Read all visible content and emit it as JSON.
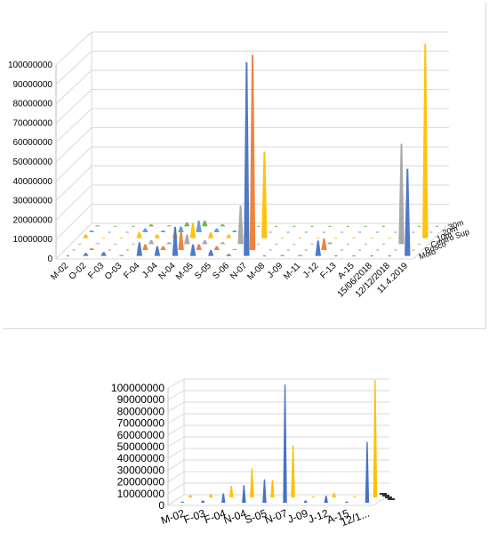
{
  "colors": {
    "Molo": "#4472c4",
    "Bosco": "#ed7d31",
    "Centro Sup": "#a5a5a5",
    "10m": "#ffc000",
    "20m": "#5b9bd5",
    "30m": "#70ad47"
  },
  "chart_data": [
    {
      "type": "bar",
      "subtype": "3d-column",
      "title": "",
      "ylim": [
        0,
        100000000
      ],
      "y_ticks": [
        "0",
        "10000000",
        "20000000",
        "30000000",
        "40000000",
        "50000000",
        "60000000",
        "70000000",
        "80000000",
        "90000000",
        "100000000"
      ],
      "categories": [
        "M-02",
        "O-02",
        "F-03",
        "O-03",
        "F-04",
        "J-04",
        "N-04",
        "M-05",
        "S-05",
        "S-06",
        "N-07",
        "M-08",
        "J-09",
        "M-11",
        "J-12",
        "F-13",
        "A-15",
        "15/06/2018",
        "12/12/2018",
        "11.4.2019"
      ],
      "series_labels": [
        "Molo",
        "Bosco",
        "Centro Sup",
        "10m",
        "20m",
        "30m"
      ],
      "series": [
        {
          "name": "Molo",
          "values": [
            0,
            1500000,
            2000000,
            500000,
            7000000,
            5000000,
            15000000,
            6000000,
            3000000,
            1000000,
            100000000,
            0,
            500000,
            500000,
            8000000,
            0,
            0,
            0,
            0,
            45000000
          ]
        },
        {
          "name": "Bosco",
          "values": [
            0,
            1000000,
            0,
            0,
            3000000,
            2000000,
            10000000,
            3000000,
            2000000,
            500000,
            101000000,
            0,
            0,
            0,
            6000000,
            0,
            0,
            0,
            0,
            0
          ]
        },
        {
          "name": "Centro Sup",
          "values": [
            0,
            500000,
            0,
            0,
            2000000,
            1000000,
            5000000,
            2000000,
            1000000,
            20000000,
            0,
            0,
            0,
            0,
            1000000,
            0,
            0,
            0,
            52000000,
            0
          ]
        },
        {
          "name": "10m",
          "values": [
            2000000,
            0,
            0,
            3000000,
            2000000,
            4000000,
            8000000,
            3000000,
            2000000,
            10000000,
            45000000,
            0,
            0,
            0,
            0,
            500000,
            0,
            0,
            0,
            101000000
          ]
        },
        {
          "name": "20m",
          "values": [
            1000000,
            0,
            0,
            2000000,
            1000000,
            3000000,
            6000000,
            2000000,
            1000000,
            0,
            0,
            0,
            0,
            0,
            0,
            0,
            0,
            0,
            0,
            0
          ]
        },
        {
          "name": "30m",
          "values": [
            500000,
            0,
            0,
            1000000,
            500000,
            2000000,
            3000000,
            1000000,
            500000,
            0,
            0,
            0,
            0,
            0,
            0,
            0,
            0,
            0,
            0,
            0
          ]
        }
      ],
      "grid": true
    },
    {
      "type": "bar",
      "subtype": "3d-column",
      "title": "",
      "ylim": [
        0,
        100000000
      ],
      "y_ticks": [
        "0",
        "10000000",
        "20000000",
        "30000000",
        "40000000",
        "50000000",
        "60000000",
        "70000000",
        "80000000",
        "90000000",
        "100000000"
      ],
      "categories": [
        "M-02",
        "F-03",
        "F-04",
        "N-04",
        "S-05",
        "N-07",
        "J-09",
        "J-12",
        "A-15",
        "12/1..."
      ],
      "series": [
        {
          "values": [
            1000000,
            2000000,
            8000000,
            15000000,
            20000000,
            101000000,
            2000000,
            6000000,
            1000000,
            52000000
          ]
        },
        {
          "values": [
            2000000,
            3000000,
            10000000,
            25000000,
            15000000,
            45000000,
            1000000,
            4000000,
            1000000,
            101000000
          ]
        }
      ],
      "grid": true
    }
  ]
}
